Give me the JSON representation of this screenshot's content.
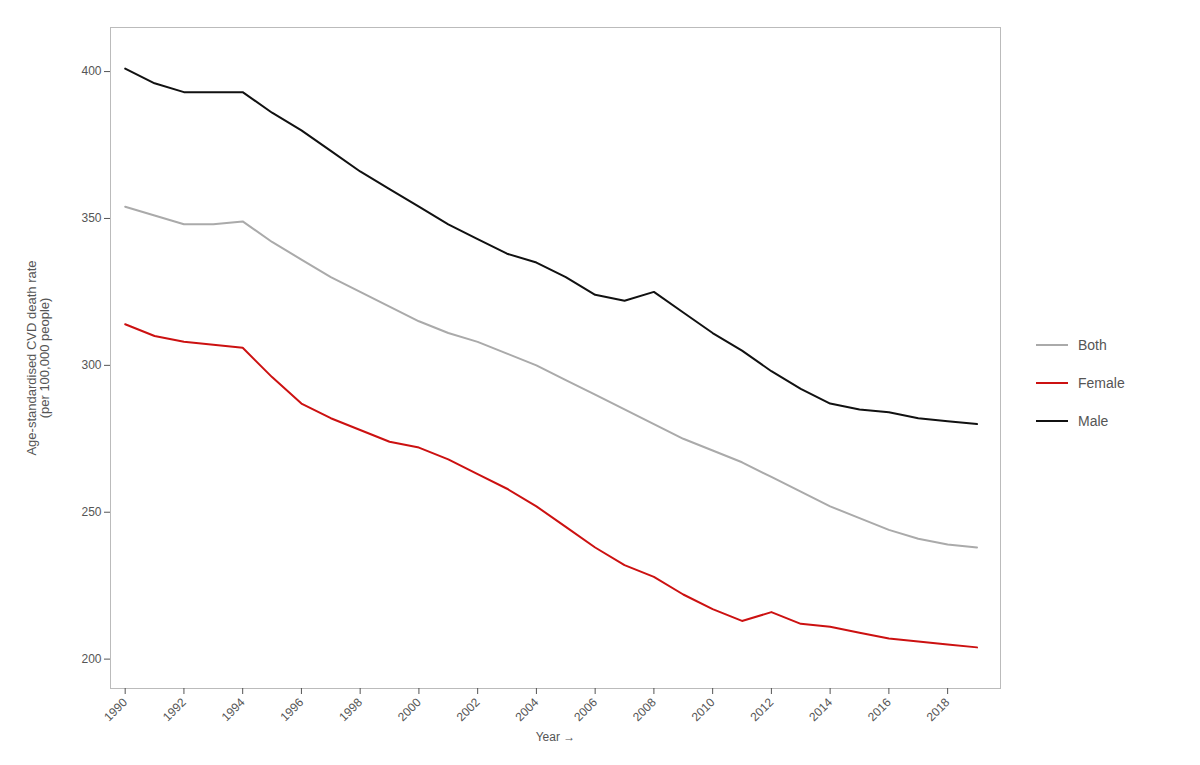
{
  "chart_data": {
    "type": "line",
    "x_label": "Year",
    "y_label": "Age-standardised CVD death rate\n(per 100,000 people)",
    "x": [
      1990,
      1991,
      1992,
      1993,
      1994,
      1995,
      1996,
      1997,
      1998,
      1999,
      2000,
      2001,
      2002,
      2003,
      2004,
      2005,
      2006,
      2007,
      2008,
      2009,
      2010,
      2011,
      2012,
      2013,
      2014,
      2015,
      2016,
      2017,
      2018,
      2019
    ],
    "series": [
      {
        "name": "Both",
        "color": "#aaaaaa",
        "values": [
          354,
          351,
          348,
          348,
          349,
          342,
          336,
          330,
          325,
          320,
          315,
          311,
          308,
          304,
          300,
          295,
          290,
          285,
          280,
          275,
          271,
          267,
          262,
          257,
          252,
          248,
          244,
          241,
          239,
          238
        ]
      },
      {
        "name": "Female",
        "color": "#cc1111",
        "values": [
          314,
          310,
          308,
          307,
          306,
          296,
          287,
          282,
          278,
          274,
          272,
          268,
          263,
          258,
          252,
          245,
          238,
          232,
          228,
          222,
          217,
          213,
          216,
          212,
          211,
          209,
          207,
          206,
          205,
          204
        ]
      },
      {
        "name": "Male",
        "color": "#111111",
        "values": [
          401,
          396,
          393,
          393,
          393,
          386,
          380,
          373,
          366,
          360,
          354,
          348,
          343,
          338,
          335,
          330,
          324,
          322,
          325,
          318,
          311,
          305,
          298,
          292,
          287,
          285,
          284,
          282,
          281,
          280
        ]
      }
    ],
    "xlim": [
      1989.5,
      2019.8
    ],
    "xticks": [
      1990,
      1992,
      1994,
      1996,
      1998,
      2000,
      2002,
      2004,
      2006,
      2008,
      2010,
      2012,
      2014,
      2016,
      2018
    ],
    "ylim": [
      190,
      415
    ],
    "yticks": [
      200,
      250,
      300,
      350,
      400
    ],
    "grid": false,
    "legend": "right"
  }
}
